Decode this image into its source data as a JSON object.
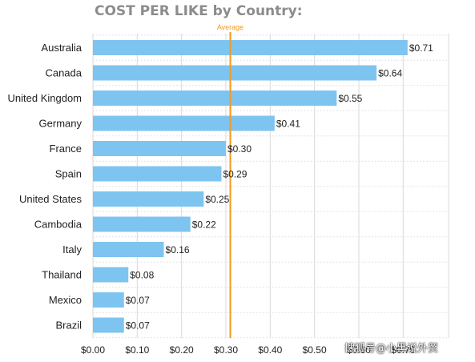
{
  "chart_data": {
    "type": "bar",
    "orientation": "horizontal",
    "title": "COST PER LIKE by Country:",
    "categories": [
      "Australia",
      "Canada",
      "United Kingdom",
      "Germany",
      "France",
      "Spain",
      "United States",
      "Cambodia",
      "Italy",
      "Thailand",
      "Mexico",
      "Brazil"
    ],
    "values": [
      0.71,
      0.64,
      0.55,
      0.41,
      0.3,
      0.29,
      0.25,
      0.22,
      0.16,
      0.08,
      0.07,
      0.07
    ],
    "value_labels": [
      "$0.71",
      "$0.64",
      "$0.55",
      "$0.41",
      "$0.30",
      "$0.29",
      "$0.25",
      "$0.22",
      "$0.16",
      "$0.08",
      "$0.07",
      "$0.07"
    ],
    "x_ticks": [
      0,
      0.1,
      0.2,
      0.3,
      0.4,
      0.5,
      0.6,
      0.7
    ],
    "x_tick_labels": [
      "$0.00",
      "$0.10",
      "$0.20",
      "$0.30",
      "$0.40",
      "$0.50",
      "$0.60",
      "$0.70"
    ],
    "xlim": [
      0,
      0.8
    ],
    "grid": true,
    "reference_line": {
      "label": "Average",
      "value": 0.31,
      "color": "#f39a1e"
    },
    "colors": {
      "bar": "#7ec4f0",
      "grid": "#d9d9d9",
      "text": "#222222",
      "title": "#8c8c8c"
    }
  },
  "watermark": "搜狐号@小黑说外贸"
}
